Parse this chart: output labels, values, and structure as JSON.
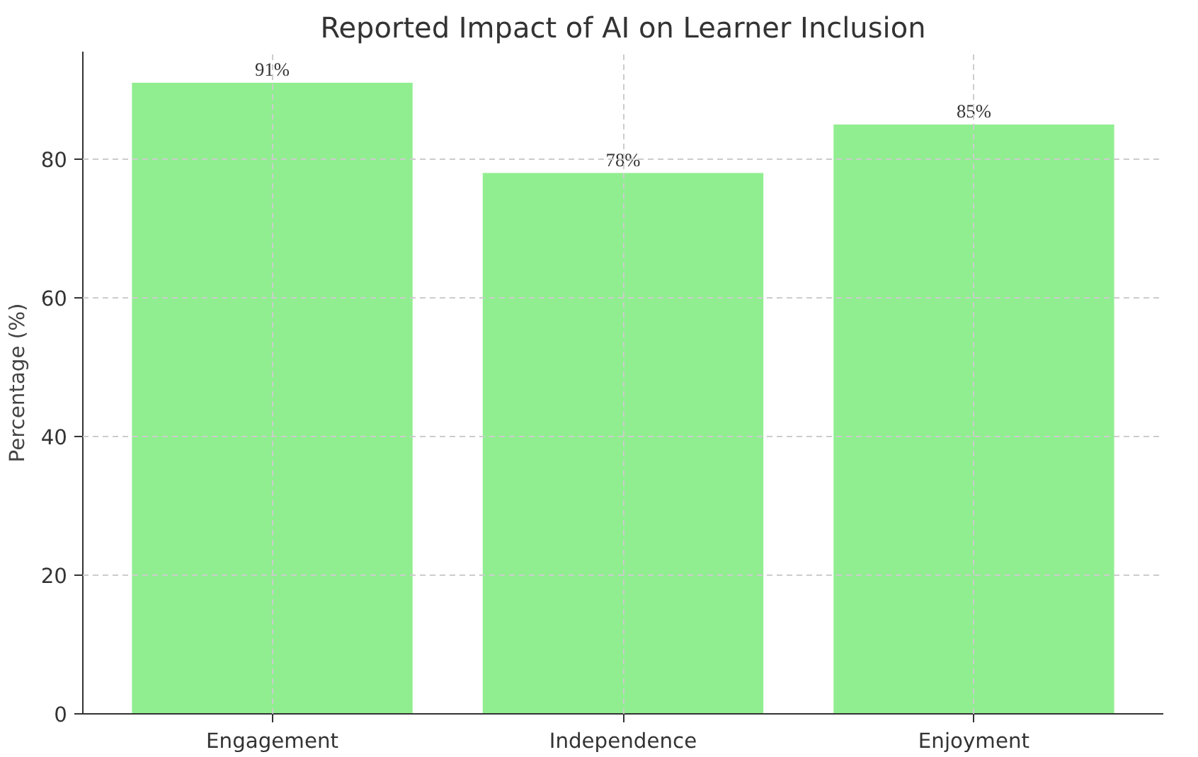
{
  "chart_data": {
    "type": "bar",
    "title": "Reported Impact of AI on Learner Inclusion",
    "ylabel": "Percentage (%)",
    "categories": [
      "Engagement",
      "Independence",
      "Enjoyment"
    ],
    "values": [
      91,
      78,
      85
    ],
    "color": "#90ee90",
    "value_labels": [
      "91%",
      "78%",
      "85%"
    ],
    "ylim": [
      0,
      95.5
    ],
    "yticks": [
      0,
      20,
      40,
      60,
      80
    ],
    "grid": true
  }
}
